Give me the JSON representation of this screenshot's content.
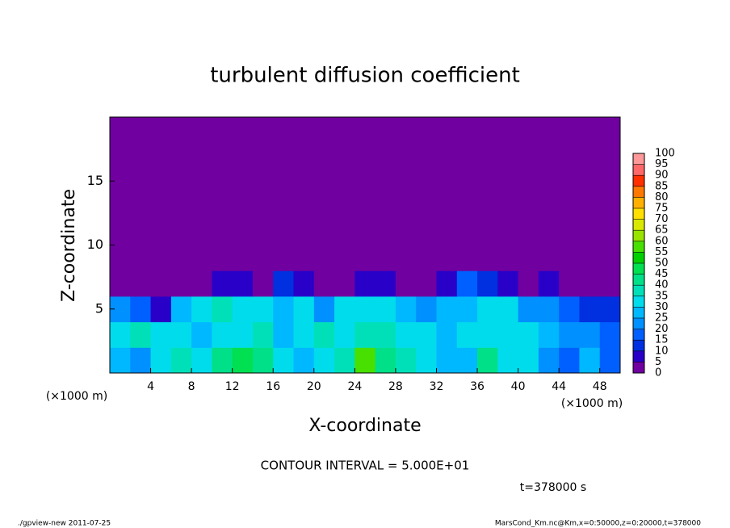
{
  "chart_data": {
    "type": "heatmap",
    "title": "turbulent diffusion coefficient",
    "xlabel": "X-coordinate",
    "ylabel": "Z-coordinate",
    "xunit": "(×1000 m)",
    "yunit": "(×1000 m)",
    "xlim": [
      0,
      50
    ],
    "ylim": [
      0,
      20
    ],
    "xticks": [
      4,
      8,
      12,
      16,
      20,
      24,
      28,
      32,
      36,
      40,
      44,
      48
    ],
    "yticks": [
      5,
      10,
      15
    ],
    "xbins": [
      0,
      2,
      4,
      6,
      8,
      10,
      12,
      14,
      16,
      18,
      20,
      22,
      24,
      26,
      28,
      30,
      32,
      34,
      36,
      38,
      40,
      42,
      44,
      46,
      48,
      50
    ],
    "ybins": [
      0,
      2,
      4,
      6,
      8,
      10,
      12,
      14,
      16,
      18,
      20
    ],
    "values": [
      [
        25,
        20,
        30,
        35,
        30,
        40,
        45,
        40,
        30,
        25,
        30,
        35,
        55,
        40,
        35,
        30,
        25,
        25,
        40,
        30,
        30,
        20,
        15,
        25,
        15
      ],
      [
        30,
        35,
        30,
        30,
        25,
        30,
        30,
        35,
        25,
        30,
        35,
        30,
        35,
        35,
        30,
        30,
        25,
        30,
        30,
        30,
        30,
        25,
        20,
        20,
        15
      ],
      [
        20,
        15,
        5,
        25,
        30,
        35,
        30,
        30,
        25,
        30,
        20,
        30,
        30,
        30,
        25,
        20,
        25,
        25,
        30,
        30,
        20,
        20,
        15,
        10,
        10
      ],
      [
        0,
        0,
        0,
        0,
        0,
        5,
        5,
        0,
        10,
        5,
        0,
        0,
        5,
        5,
        0,
        0,
        5,
        15,
        10,
        5,
        0,
        5,
        0,
        0,
        0
      ],
      [
        0,
        0,
        0,
        0,
        0,
        0,
        0,
        0,
        0,
        0,
        0,
        0,
        0,
        0,
        0,
        0,
        0,
        0,
        0,
        0,
        0,
        0,
        0,
        0,
        0
      ],
      [
        0,
        0,
        0,
        0,
        0,
        0,
        0,
        0,
        0,
        0,
        0,
        0,
        0,
        0,
        0,
        0,
        0,
        0,
        0,
        0,
        0,
        0,
        0,
        0,
        0
      ],
      [
        0,
        0,
        0,
        0,
        0,
        0,
        0,
        0,
        0,
        0,
        0,
        0,
        0,
        0,
        0,
        0,
        0,
        0,
        0,
        0,
        0,
        0,
        0,
        0,
        0
      ],
      [
        0,
        0,
        0,
        0,
        0,
        0,
        0,
        0,
        0,
        0,
        0,
        0,
        0,
        0,
        0,
        0,
        0,
        0,
        0,
        0,
        0,
        0,
        0,
        0,
        0
      ],
      [
        0,
        0,
        0,
        0,
        0,
        0,
        0,
        0,
        0,
        0,
        0,
        0,
        0,
        0,
        0,
        0,
        0,
        0,
        0,
        0,
        0,
        0,
        0,
        0,
        0
      ],
      [
        0,
        0,
        0,
        0,
        0,
        0,
        0,
        0,
        0,
        0,
        0,
        0,
        0,
        0,
        0,
        0,
        0,
        0,
        0,
        0,
        0,
        0,
        0,
        0,
        0
      ]
    ],
    "colorbar_ticks": [
      0,
      5,
      10,
      15,
      20,
      25,
      30,
      35,
      40,
      45,
      50,
      55,
      60,
      65,
      70,
      75,
      80,
      85,
      90,
      95,
      100
    ],
    "colors": [
      "#7000a0",
      "#2800c8",
      "#0030e0",
      "#0060ff",
      "#0090ff",
      "#00b8ff",
      "#00dcec",
      "#00e0b8",
      "#00e088",
      "#00e050",
      "#00d000",
      "#48e000",
      "#98e400",
      "#d8e800",
      "#ffe000",
      "#ffb000",
      "#ff7800",
      "#ff3000",
      "#ff6868",
      "#ff9898"
    ],
    "contour_note": "CONTOUR INTERVAL = 5.000E+01",
    "time_note": "t=378000 s",
    "footer_left": "./gpview-new  2011-07-25",
    "footer_right": "MarsCond_Km.nc@Km,x=0:50000,z=0:20000,t=378000"
  }
}
